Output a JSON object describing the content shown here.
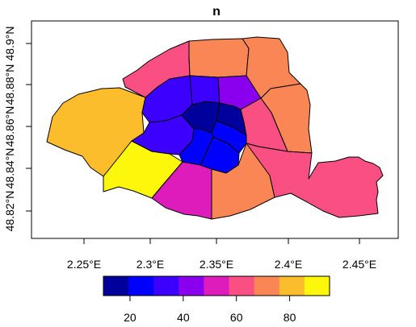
{
  "title": "n",
  "x_axis": {
    "ticks": [
      "2.25°E",
      "2.3°E",
      "2.35°E",
      "2.4°E",
      "2.45°E"
    ]
  },
  "y_axis": {
    "ticks": [
      "48.82°N",
      "48.84°N",
      "48.86°N",
      "48.88°N",
      "48.9°N"
    ]
  },
  "legend": {
    "colors": [
      "#00009c",
      "#0000ff",
      "#3b00ff",
      "#8a00ee",
      "#dd1cbb",
      "#fa4f82",
      "#fb8655",
      "#fcbd2c",
      "#fdf70c"
    ],
    "ticks": [
      "20",
      "40",
      "60",
      "80"
    ]
  },
  "chart_data": {
    "type": "choropleth",
    "variable": "n",
    "scale": "continuous color ramp, dark blue (low) to yellow (high)",
    "legend_range": [
      10,
      95
    ],
    "legend_placement": "bottom",
    "districts": [
      {
        "name": "central-core-west",
        "color": "#00009c"
      },
      {
        "name": "central-core-east",
        "color": "#00009c"
      },
      {
        "name": "central-core-south",
        "color": "#00009c"
      },
      {
        "name": "right-bank-center-south",
        "color": "#0000ff"
      },
      {
        "name": "left-bank-center",
        "color": "#0000ff"
      },
      {
        "name": "right-bank-center-east",
        "color": "#0000ff"
      },
      {
        "name": "northwest-inner",
        "color": "#3b00ff"
      },
      {
        "name": "north-inner",
        "color": "#3b00ff"
      },
      {
        "name": "west-inner",
        "color": "#3b00ff"
      },
      {
        "name": "northeast-inner",
        "color": "#8a00ee"
      },
      {
        "name": "south-center",
        "color": "#dd1cbb"
      },
      {
        "name": "northwest-outer",
        "color": "#fa4f82"
      },
      {
        "name": "east-inner",
        "color": "#fa4f82"
      },
      {
        "name": "southeast-outer",
        "color": "#fa4f82"
      },
      {
        "name": "north-center-outer",
        "color": "#fb8655"
      },
      {
        "name": "northeast-outer",
        "color": "#fb8655"
      },
      {
        "name": "east-outer",
        "color": "#fb8655"
      },
      {
        "name": "south-outer",
        "color": "#fb8655"
      },
      {
        "name": "west-outer",
        "color": "#fcbd2c"
      },
      {
        "name": "southwest-outer",
        "color": "#fdf70c"
      }
    ]
  }
}
